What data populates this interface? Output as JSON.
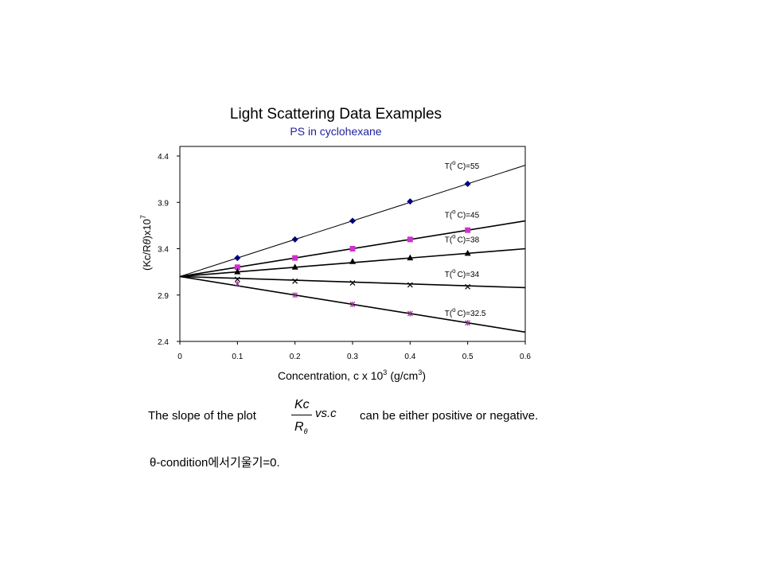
{
  "chart_data": {
    "type": "scatter",
    "title": "Light Scattering Data Examples",
    "subtitle": "PS in cyclohexane",
    "xlabel": "Concentration, c x 10",
    "xlabel_exp": "3",
    "xlabel_unit": "(g/cm",
    "xlabel_unit_exp": "3",
    "xlabel_close": ")",
    "ylabel": "(Kc/R",
    "ylabel_theta": "θ",
    "ylabel_mid": ")x10",
    "ylabel_exp": "7",
    "xlim": [
      0,
      0.6
    ],
    "ylim": [
      2.4,
      4.4
    ],
    "xticks": [
      "0",
      "0.1",
      "0.2",
      "0.3",
      "0.4",
      "0.5",
      "0.6"
    ],
    "yticks": [
      "2.4",
      "2.9",
      "3.4",
      "3.9",
      "4.4"
    ],
    "grid": false,
    "intercept": 3.1,
    "series": [
      {
        "name": "T(°C)=55",
        "label_pre": "T(",
        "label_sup": "o",
        "label_post": "C)=55",
        "marker": "diamond",
        "color": "#00007f",
        "x": [
          0.1,
          0.2,
          0.3,
          0.4,
          0.5
        ],
        "y": [
          3.3,
          3.5,
          3.7,
          3.91,
          4.1
        ],
        "slope": 2.0
      },
      {
        "name": "T(°C)=45",
        "label_pre": "T(",
        "label_sup": "o",
        "label_post": "C)=45",
        "marker": "square",
        "color": "#cc33cc",
        "x": [
          0.1,
          0.2,
          0.3,
          0.4,
          0.5
        ],
        "y": [
          3.2,
          3.3,
          3.4,
          3.5,
          3.6
        ],
        "slope": 1.0
      },
      {
        "name": "T(°C)=38",
        "label_pre": "T(",
        "label_sup": "o",
        "label_post": "C)=38",
        "marker": "triangle",
        "color": "#000000",
        "x": [
          0.1,
          0.2,
          0.3,
          0.4,
          0.5
        ],
        "y": [
          3.15,
          3.2,
          3.26,
          3.3,
          3.35
        ],
        "slope": 0.5
      },
      {
        "name": "T(°C)=34",
        "label_pre": "T(",
        "label_sup": "o",
        "label_post": "C)=34",
        "marker": "x",
        "color": "#000000",
        "x": [
          0.1,
          0.2,
          0.3,
          0.4,
          0.5
        ],
        "y": [
          3.07,
          3.05,
          3.03,
          3.01,
          2.99
        ],
        "slope": -0.2
      },
      {
        "name": "T(°C)=32.5",
        "label_pre": "T(",
        "label_sup": "o",
        "label_post": "C)=32.5",
        "marker": "star",
        "color": "#993399",
        "x": [
          0.1,
          0.2,
          0.3,
          0.4,
          0.5
        ],
        "y": [
          3.02,
          2.9,
          2.8,
          2.7,
          2.6
        ],
        "slope": -1.0
      }
    ]
  },
  "caption": {
    "left": "The slope of the plot",
    "right": "can be either positive or negative.",
    "theta_line": "θ-condition에서기울기=0."
  },
  "formula": {
    "numerator": "Kc",
    "denominator": "R",
    "denominator_sub": "θ",
    "suffix": "vs.c"
  }
}
